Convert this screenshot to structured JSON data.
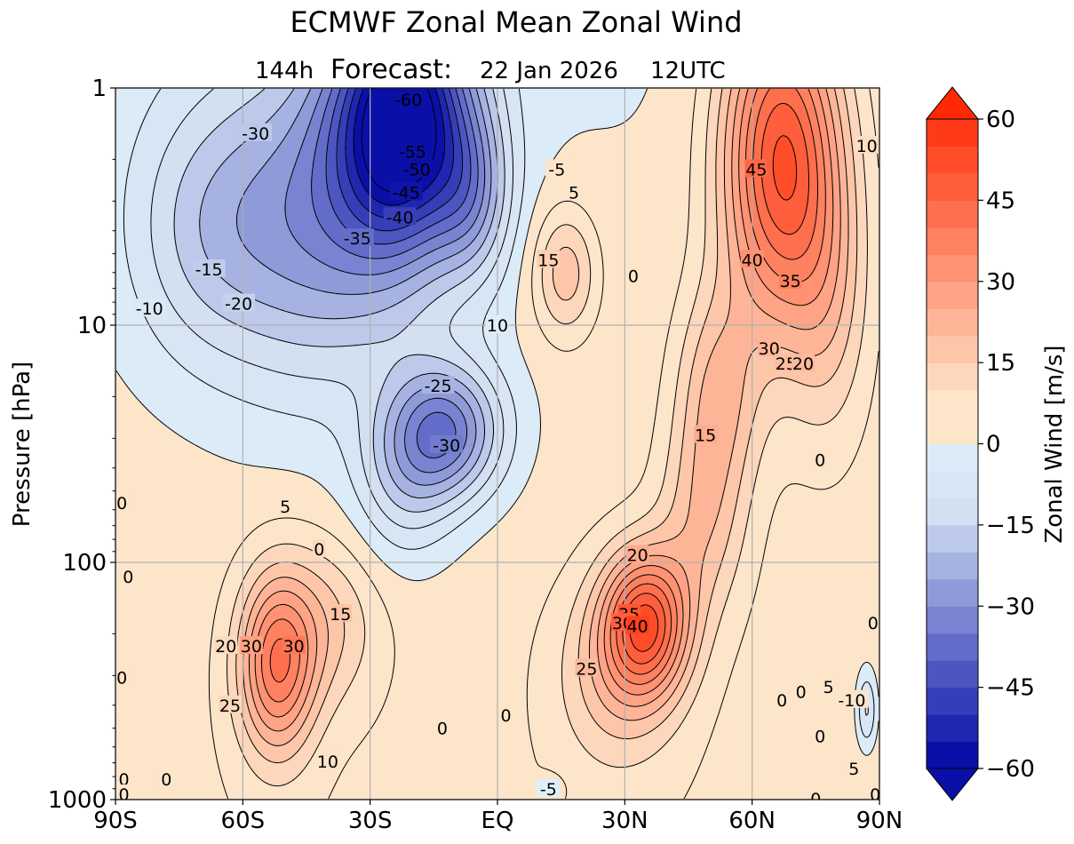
{
  "chart_data": {
    "type": "contour",
    "title": "ECMWF Zonal Mean Zonal Wind",
    "subtitle": {
      "lead": "144h",
      "label": "Forecast:",
      "date": "22 Jan 2026",
      "time": "12UTC"
    },
    "xlabel": "",
    "ylabel": "Pressure [hPa]",
    "x_ticks": [
      "90S",
      "60S",
      "30S",
      "EQ",
      "30N",
      "60N",
      "90N"
    ],
    "x_range": [
      -90,
      90
    ],
    "y_scale": "log",
    "y_ticks": [
      "1",
      "10",
      "100",
      "1000"
    ],
    "y_range": [
      1000,
      1
    ],
    "grid": true,
    "colorbar": {
      "label": "Zonal Wind [m/s]",
      "ticks": [
        "60",
        "45",
        "30",
        "15",
        "0",
        "−15",
        "−30",
        "−45",
        "−60"
      ],
      "range": [
        -60,
        60
      ],
      "step": 5,
      "extend": "both",
      "negative_color": "#0a0fa8",
      "positive_color": "#ff2a05",
      "zero_color": "#ffffff"
    },
    "contour_interval": 5,
    "features": [
      {
        "name": "stratospheric-easterly-jet",
        "lat": -22,
        "p": 1.5,
        "value": -60
      },
      {
        "name": "polar-night-jet",
        "lat": 67,
        "p": 2,
        "value": 50
      },
      {
        "name": "nh-subtropical-jet",
        "lat": 35,
        "p": 180,
        "value": 42
      },
      {
        "name": "sh-subtropical-jet",
        "lat": -52,
        "p": 270,
        "value": 35
      },
      {
        "name": "tropical-upper-westerly",
        "lat": 16,
        "p": 6,
        "value": 17
      },
      {
        "name": "tropical-easterly-tongue",
        "lat": -12,
        "p": 30,
        "value": -33
      }
    ],
    "contour_labels": [
      {
        "text": "-60",
        "lat": -21,
        "p": 1.12
      },
      {
        "text": "-55",
        "lat": -20,
        "p": 1.85
      },
      {
        "text": "-50",
        "lat": -19,
        "p": 2.2
      },
      {
        "text": "-45",
        "lat": -21.5,
        "p": 2.75
      },
      {
        "text": "-40",
        "lat": -23,
        "p": 3.5
      },
      {
        "text": "-35",
        "lat": -33,
        "p": 4.3
      },
      {
        "text": "-30",
        "lat": -57,
        "p": 1.55
      },
      {
        "text": "-15",
        "lat": -68,
        "p": 5.8
      },
      {
        "text": "-10",
        "lat": -82,
        "p": 8.5
      },
      {
        "text": "-20",
        "lat": -61,
        "p": 8.1
      },
      {
        "text": "-25",
        "lat": -14,
        "p": 18
      },
      {
        "text": "-30",
        "lat": -12,
        "p": 32
      },
      {
        "text": "-5",
        "lat": 14,
        "p": 2.2
      },
      {
        "text": "5",
        "lat": 18,
        "p": 2.75
      },
      {
        "text": "15",
        "lat": 12,
        "p": 5.3
      },
      {
        "text": "0",
        "lat": 32,
        "p": 6.2
      },
      {
        "text": "10",
        "lat": 0,
        "p": 10
      },
      {
        "text": "45",
        "lat": 61,
        "p": 2.2
      },
      {
        "text": "40",
        "lat": 60,
        "p": 5.3
      },
      {
        "text": "35",
        "lat": 69,
        "p": 6.5
      },
      {
        "text": "30",
        "lat": 64,
        "p": 12.5
      },
      {
        "text": "25",
        "lat": 68,
        "p": 14.5
      },
      {
        "text": "20",
        "lat": 72,
        "p": 14.5
      },
      {
        "text": "15",
        "lat": 49,
        "p": 29
      },
      {
        "text": "0",
        "lat": 76,
        "p": 37
      },
      {
        "text": "10",
        "lat": 87,
        "p": 1.75
      },
      {
        "text": "5",
        "lat": -50,
        "p": 58
      },
      {
        "text": "0",
        "lat": -42,
        "p": 88
      },
      {
        "text": "20",
        "lat": 33,
        "p": 93
      },
      {
        "text": "15",
        "lat": -37,
        "p": 165
      },
      {
        "text": "35",
        "lat": 31,
        "p": 165
      },
      {
        "text": "30",
        "lat": 29.5,
        "p": 180
      },
      {
        "text": "40",
        "lat": 33,
        "p": 185
      },
      {
        "text": "25",
        "lat": 21,
        "p": 280
      },
      {
        "text": "30",
        "lat": -58,
        "p": 225
      },
      {
        "text": "30",
        "lat": -48,
        "p": 225
      },
      {
        "text": "20",
        "lat": -64,
        "p": 225
      },
      {
        "text": "25",
        "lat": -63,
        "p": 400
      },
      {
        "text": "10",
        "lat": -40,
        "p": 690
      },
      {
        "text": "0",
        "lat": -87,
        "p": 115
      },
      {
        "text": "0",
        "lat": -88.5,
        "p": 56
      },
      {
        "text": "0",
        "lat": -88.5,
        "p": 305
      },
      {
        "text": "0",
        "lat": -88,
        "p": 820
      },
      {
        "text": "0",
        "lat": -78,
        "p": 820
      },
      {
        "text": "0",
        "lat": -88,
        "p": 950
      },
      {
        "text": "0",
        "lat": -13,
        "p": 500
      },
      {
        "text": "0",
        "lat": 2,
        "p": 440
      },
      {
        "text": "-5",
        "lat": 12,
        "p": 900
      },
      {
        "text": "0",
        "lat": 67,
        "p": 380
      },
      {
        "text": "0",
        "lat": 71.5,
        "p": 350
      },
      {
        "text": "5",
        "lat": 78,
        "p": 335
      },
      {
        "text": "-10",
        "lat": 83.5,
        "p": 380
      },
      {
        "text": "0",
        "lat": 88.5,
        "p": 180
      },
      {
        "text": "0",
        "lat": 76,
        "p": 540
      },
      {
        "text": "5",
        "lat": 84,
        "p": 740
      },
      {
        "text": "0",
        "lat": 75,
        "p": 990
      },
      {
        "text": "0",
        "lat": 89,
        "p": 950
      }
    ]
  }
}
